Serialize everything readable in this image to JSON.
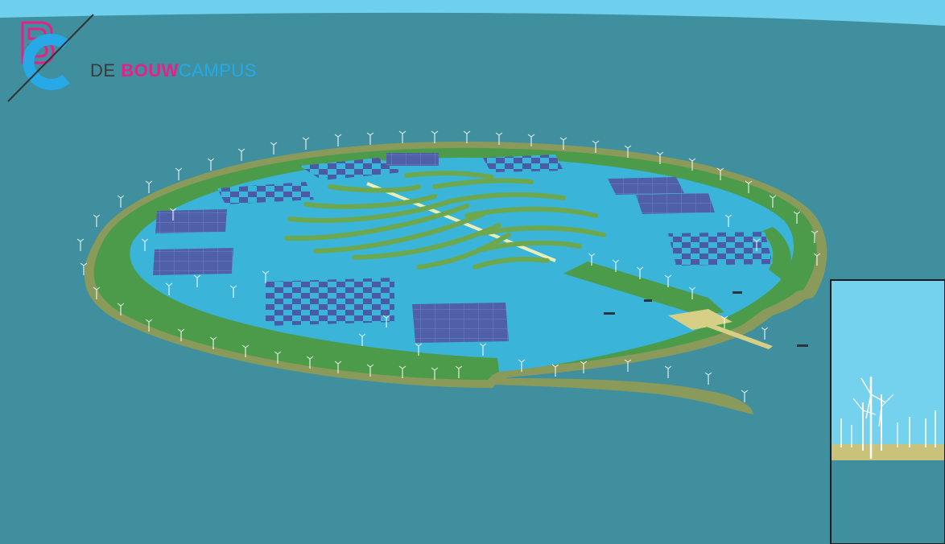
{
  "logo": {
    "word_de": "DE ",
    "word_bouw": "BOUW",
    "word_campus": "CAMPUS",
    "colors": {
      "pink": "#e5208a",
      "blue": "#26a9e6",
      "dark": "#3a3a3a"
    }
  },
  "scene": {
    "colors": {
      "sea": "#3f8f9f",
      "lagoon": "#3ab4d9",
      "land": "#4c9b4a",
      "dike": "#8a9a5a",
      "solar": "#4f5fa8",
      "sky": "#74d2ef"
    },
    "icons": [
      "wind-turbine-icon",
      "solar-panel-field",
      "ship-icon"
    ]
  }
}
